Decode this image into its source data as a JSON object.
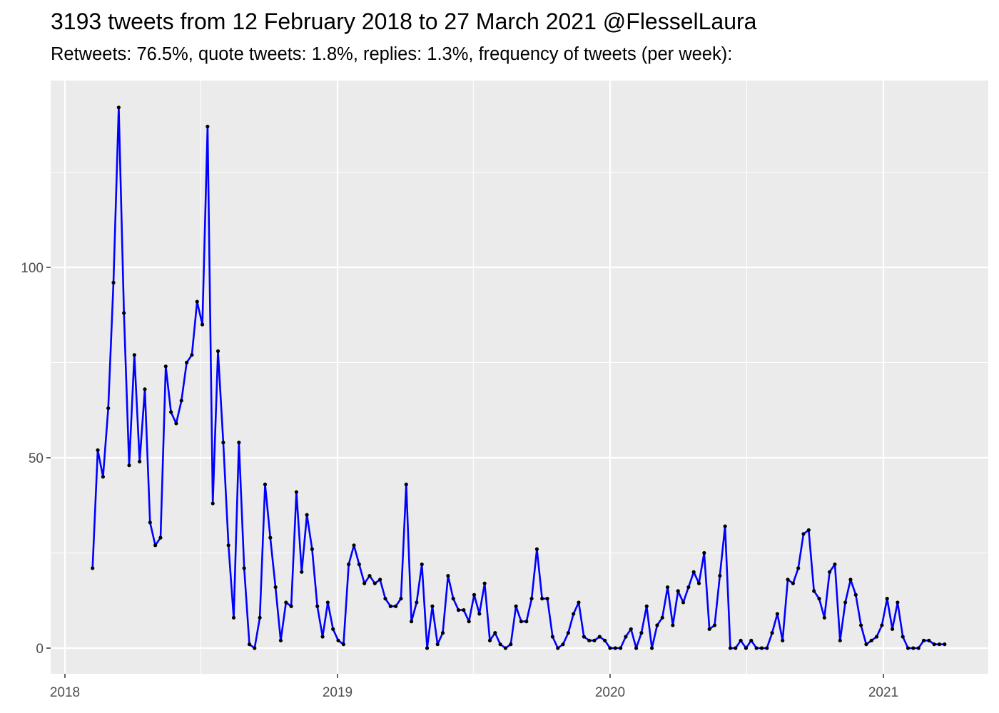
{
  "chart_data": {
    "type": "line",
    "title": "3193 tweets from 12 February 2018 to 27 March 2021 @FlesselLaura",
    "subtitle": "Retweets: 76.5%, quote tweets: 1.8%, replies: 1.3%, frequency of tweets (per week):",
    "xlabel": "",
    "ylabel": "",
    "x_ticks": [
      "2018",
      "2019",
      "2020",
      "2021"
    ],
    "y_ticks": [
      0,
      50,
      100
    ],
    "ylim": [
      -6,
      148
    ],
    "xlim": [
      "2017-12-08",
      "2021-04-27"
    ],
    "grid": true,
    "line_color": "#0000FF",
    "point_color": "#000000",
    "panel_color": "#EBEBEB",
    "x": [
      "2018-02-07",
      "2018-02-14",
      "2018-02-21",
      "2018-02-28",
      "2018-03-07",
      "2018-03-14",
      "2018-03-21",
      "2018-03-28",
      "2018-04-04",
      "2018-04-11",
      "2018-04-18",
      "2018-04-25",
      "2018-05-02",
      "2018-05-09",
      "2018-05-16",
      "2018-05-23",
      "2018-05-30",
      "2018-06-06",
      "2018-06-13",
      "2018-06-20",
      "2018-06-27",
      "2018-07-04",
      "2018-07-11",
      "2018-07-18",
      "2018-07-25",
      "2018-08-01",
      "2018-08-08",
      "2018-08-15",
      "2018-08-22",
      "2018-08-29",
      "2018-09-05",
      "2018-09-12",
      "2018-09-19",
      "2018-09-26",
      "2018-10-03",
      "2018-10-10",
      "2018-10-17",
      "2018-10-24",
      "2018-10-31",
      "2018-11-07",
      "2018-11-14",
      "2018-11-21",
      "2018-11-28",
      "2018-12-05",
      "2018-12-12",
      "2018-12-19",
      "2018-12-26",
      "2019-01-02",
      "2019-01-09",
      "2019-01-16",
      "2019-01-23",
      "2019-01-30",
      "2019-02-06",
      "2019-02-13",
      "2019-02-20",
      "2019-02-27",
      "2019-03-06",
      "2019-03-13",
      "2019-03-20",
      "2019-03-27",
      "2019-04-03",
      "2019-04-10",
      "2019-04-17",
      "2019-04-24",
      "2019-05-01",
      "2019-05-08",
      "2019-05-15",
      "2019-05-22",
      "2019-05-29",
      "2019-06-05",
      "2019-06-12",
      "2019-06-19",
      "2019-06-26",
      "2019-07-03",
      "2019-07-10",
      "2019-07-17",
      "2019-07-24",
      "2019-07-31",
      "2019-08-07",
      "2019-08-14",
      "2019-08-21",
      "2019-08-28",
      "2019-09-04",
      "2019-09-11",
      "2019-09-18",
      "2019-09-25",
      "2019-10-02",
      "2019-10-09",
      "2019-10-16",
      "2019-10-23",
      "2019-10-30",
      "2019-11-06",
      "2019-11-13",
      "2019-11-20",
      "2019-11-27",
      "2019-12-04",
      "2019-12-11",
      "2019-12-18",
      "2019-12-25",
      "2020-01-01",
      "2020-01-08",
      "2020-01-15",
      "2020-01-22",
      "2020-01-29",
      "2020-02-05",
      "2020-02-12",
      "2020-02-19",
      "2020-02-26",
      "2020-03-04",
      "2020-03-11",
      "2020-03-18",
      "2020-03-25",
      "2020-04-01",
      "2020-04-08",
      "2020-04-15",
      "2020-04-22",
      "2020-04-29",
      "2020-05-06",
      "2020-05-13",
      "2020-05-20",
      "2020-05-27",
      "2020-06-03",
      "2020-06-10",
      "2020-06-17",
      "2020-06-24",
      "2020-07-01",
      "2020-07-08",
      "2020-07-15",
      "2020-07-22",
      "2020-07-29",
      "2020-08-05",
      "2020-08-12",
      "2020-08-19",
      "2020-08-26",
      "2020-09-02",
      "2020-09-09",
      "2020-09-16",
      "2020-09-23",
      "2020-09-30",
      "2020-10-07",
      "2020-10-14",
      "2020-10-21",
      "2020-10-28",
      "2020-11-04",
      "2020-11-11",
      "2020-11-18",
      "2020-11-25",
      "2020-12-02",
      "2020-12-09",
      "2020-12-16",
      "2020-12-23",
      "2020-12-30",
      "2021-01-06",
      "2021-01-13",
      "2021-01-20",
      "2021-01-27",
      "2021-02-03",
      "2021-02-10",
      "2021-02-17",
      "2021-02-24",
      "2021-03-03",
      "2021-03-10",
      "2021-03-17",
      "2021-03-24"
    ],
    "values": [
      21,
      52,
      45,
      63,
      96,
      142,
      88,
      48,
      77,
      49,
      68,
      33,
      27,
      29,
      74,
      62,
      59,
      65,
      75,
      77,
      91,
      85,
      137,
      38,
      78,
      54,
      27,
      8,
      54,
      21,
      1,
      0,
      8,
      43,
      29,
      16,
      2,
      12,
      11,
      41,
      20,
      35,
      26,
      11,
      3,
      12,
      5,
      2,
      1,
      22,
      27,
      22,
      17,
      19,
      17,
      18,
      13,
      11,
      11,
      13,
      43,
      7,
      12,
      22,
      0,
      11,
      1,
      4,
      19,
      13,
      10,
      10,
      7,
      14,
      9,
      17,
      2,
      4,
      1,
      0,
      1,
      11,
      7,
      7,
      13,
      26,
      13,
      13,
      3,
      0,
      1,
      4,
      9,
      12,
      3,
      2,
      2,
      3,
      2,
      0,
      0,
      0,
      3,
      5,
      0,
      4,
      11,
      0,
      6,
      8,
      16,
      6,
      15,
      12,
      16,
      20,
      17,
      25,
      5,
      6,
      19,
      32,
      0,
      0,
      2,
      0,
      2,
      0,
      0,
      0,
      4,
      9,
      2,
      18,
      17,
      21,
      30,
      31,
      15,
      13,
      8,
      20,
      22,
      2,
      12,
      18,
      14,
      6,
      1,
      2,
      3,
      6,
      13,
      5,
      12,
      3,
      0,
      0,
      0,
      2,
      2,
      1,
      1,
      1
    ]
  }
}
